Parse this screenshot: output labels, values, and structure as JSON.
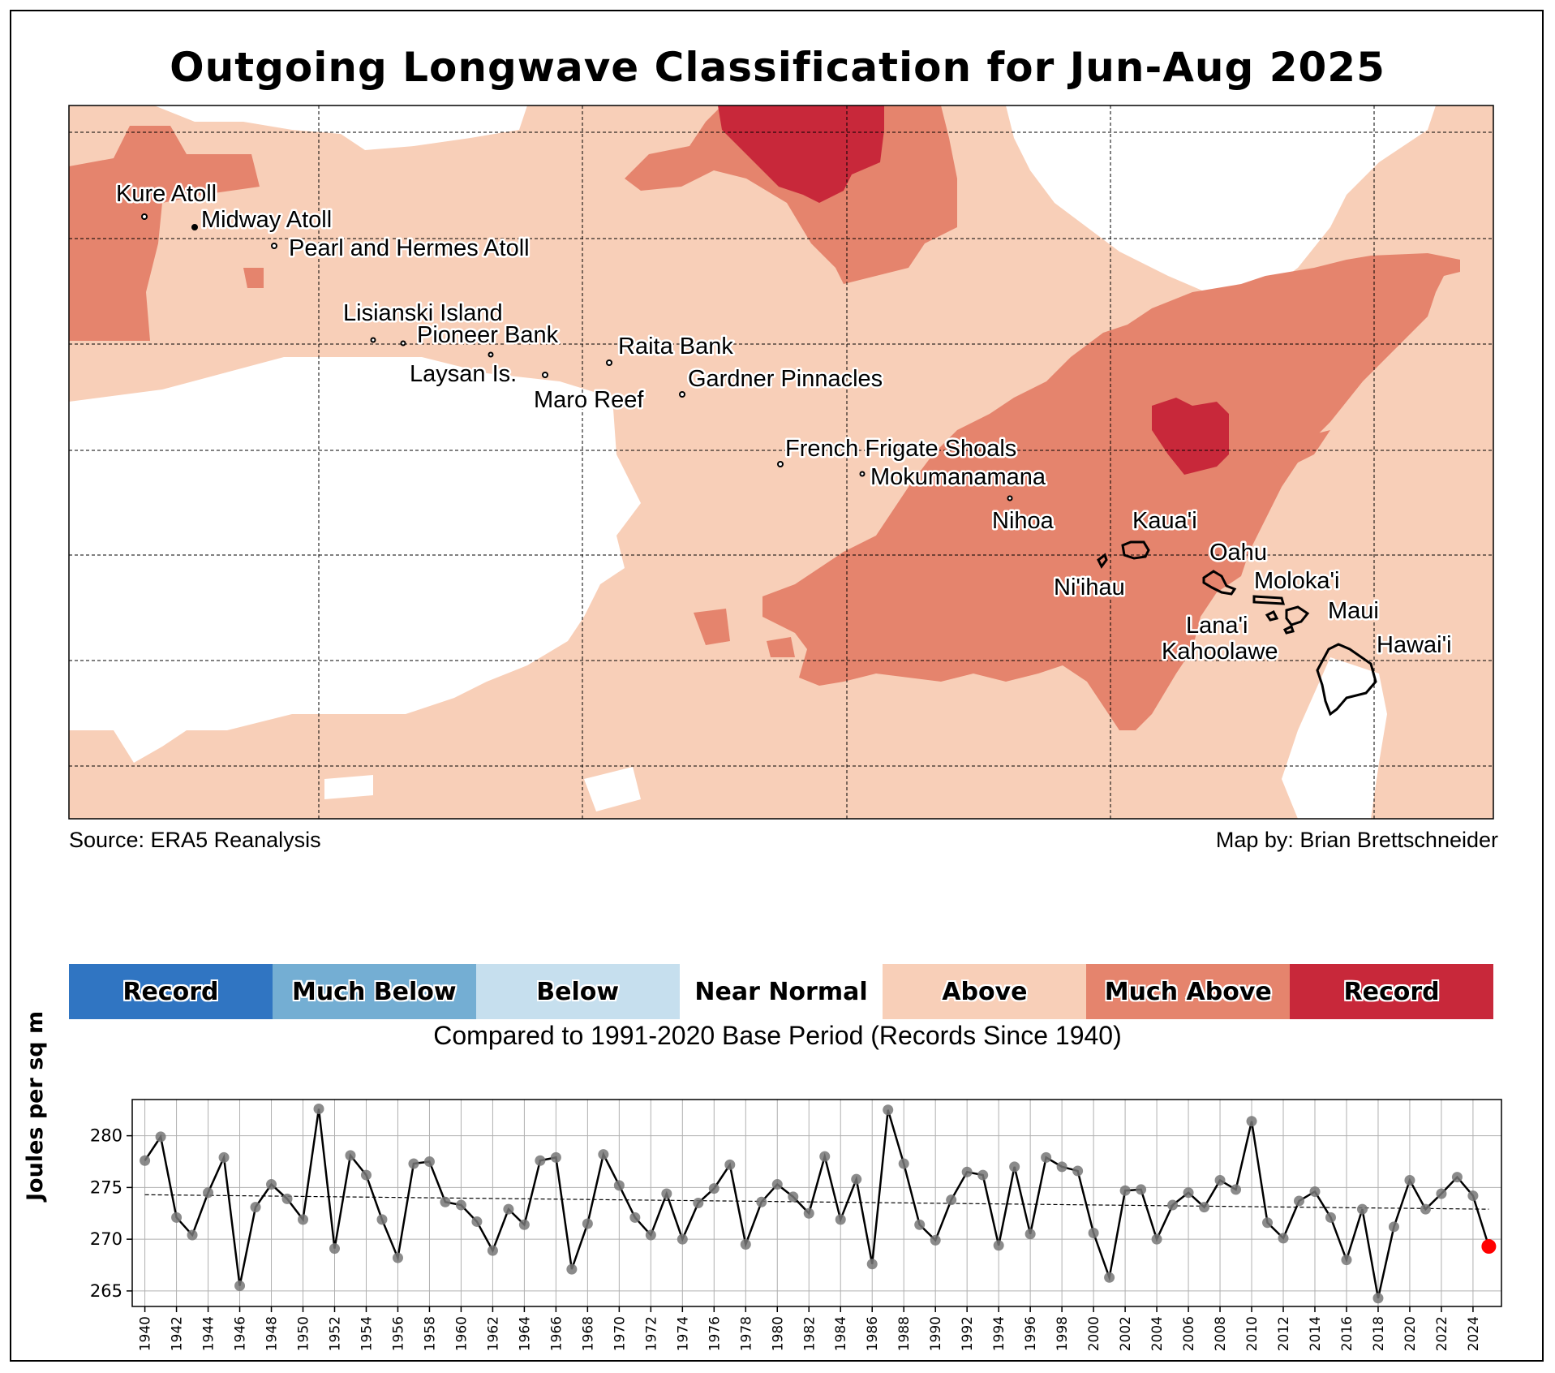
{
  "title": "Outgoing Longwave Classification for Jun-Aug 2025",
  "source": "Source: ERA5 Reanalysis",
  "credit": "Map by: Brian Brettschneider",
  "map": {
    "colors": {
      "above": "#f8cfb8",
      "much_above": "#e5846d",
      "record": "#c8283a",
      "near_normal": "#ffffff"
    },
    "places": [
      "Kure Atoll",
      "Midway Atoll",
      "Pearl and Hermes Atoll",
      "Lisianski Island",
      "Pioneer Bank",
      "Raita Bank",
      "Laysan Is.",
      "Gardner Pinnacles",
      "Maro Reef",
      "French Frigate Shoals",
      "Mokumanamana",
      "Nihoa",
      "Kaua'i",
      "Oahu",
      "Ni'ihau",
      "Moloka'i",
      "Maui",
      "Lana'i",
      "Kahoolawe",
      "Hawai'i"
    ]
  },
  "legend": {
    "items": [
      {
        "label": "Record",
        "color": "#3075c2"
      },
      {
        "label": "Much Below",
        "color": "#74aed3"
      },
      {
        "label": "Below",
        "color": "#c6dfee"
      },
      {
        "label": "Near Normal",
        "color": "#ffffff"
      },
      {
        "label": "Above",
        "color": "#f8cfb8"
      },
      {
        "label": "Much Above",
        "color": "#e5846d"
      },
      {
        "label": "Record",
        "color": "#c8283a"
      }
    ],
    "note": "Compared to 1991-2020 Base Period   (Records Since 1940)"
  },
  "chart_data": {
    "type": "line",
    "ylabel": "Joules per sq m",
    "xlabel": "",
    "ylim": [
      263.5,
      283.5
    ],
    "yticks": [
      265,
      270,
      275,
      280
    ],
    "xlim": [
      1939.2,
      2025.8
    ],
    "x": [
      1940,
      1941,
      1942,
      1943,
      1944,
      1945,
      1946,
      1947,
      1948,
      1949,
      1950,
      1951,
      1952,
      1953,
      1954,
      1955,
      1956,
      1957,
      1958,
      1959,
      1960,
      1961,
      1962,
      1963,
      1964,
      1965,
      1966,
      1967,
      1968,
      1969,
      1970,
      1971,
      1972,
      1973,
      1974,
      1975,
      1976,
      1977,
      1978,
      1979,
      1980,
      1981,
      1982,
      1983,
      1984,
      1985,
      1986,
      1987,
      1988,
      1989,
      1990,
      1991,
      1992,
      1993,
      1994,
      1995,
      1996,
      1997,
      1998,
      1999,
      2000,
      2001,
      2002,
      2003,
      2004,
      2005,
      2006,
      2007,
      2008,
      2009,
      2010,
      2011,
      2012,
      2013,
      2014,
      2015,
      2016,
      2017,
      2018,
      2019,
      2020,
      2021,
      2022,
      2023,
      2024,
      2025
    ],
    "values": [
      277.6,
      279.9,
      272.1,
      270.4,
      274.5,
      277.9,
      265.5,
      273.1,
      275.3,
      273.9,
      271.9,
      282.6,
      269.1,
      278.1,
      276.2,
      271.9,
      268.2,
      277.3,
      277.5,
      273.6,
      273.3,
      271.7,
      268.9,
      272.9,
      271.4,
      277.6,
      277.9,
      267.1,
      271.5,
      278.2,
      275.2,
      272.1,
      270.4,
      274.4,
      270.0,
      273.5,
      274.9,
      277.2,
      269.5,
      273.6,
      275.3,
      274.1,
      272.5,
      278.0,
      271.9,
      275.8,
      267.6,
      282.5,
      277.3,
      271.4,
      269.9,
      273.8,
      276.5,
      276.2,
      269.4,
      277.0,
      270.5,
      277.9,
      277.0,
      276.6,
      270.6,
      266.3,
      274.7,
      274.8,
      270.0,
      273.3,
      274.5,
      273.1,
      275.7,
      274.8,
      281.4,
      271.6,
      270.1,
      273.7,
      274.6,
      272.1,
      268.0,
      272.9,
      264.3,
      271.2,
      275.7,
      272.9,
      274.4,
      276.0,
      274.2,
      269.3
    ],
    "trend": {
      "start": [
        1940,
        274.3
      ],
      "end": [
        2025,
        272.9
      ]
    },
    "xtick_labels": [
      "1940",
      "1942",
      "1944",
      "1946",
      "1948",
      "1950",
      "1952",
      "1954",
      "1956",
      "1958",
      "1960",
      "1962",
      "1964",
      "1966",
      "1968",
      "1970",
      "1972",
      "1974",
      "1976",
      "1978",
      "1980",
      "1982",
      "1984",
      "1986",
      "1988",
      "1990",
      "1992",
      "1994",
      "1996",
      "1998",
      "2000",
      "2002",
      "2004",
      "2006",
      "2008",
      "2010",
      "2012",
      "2014",
      "2016",
      "2018",
      "2020",
      "2022",
      "2024"
    ],
    "highlight_year": 2025,
    "highlight_color": "#ff0000",
    "grid": true
  }
}
